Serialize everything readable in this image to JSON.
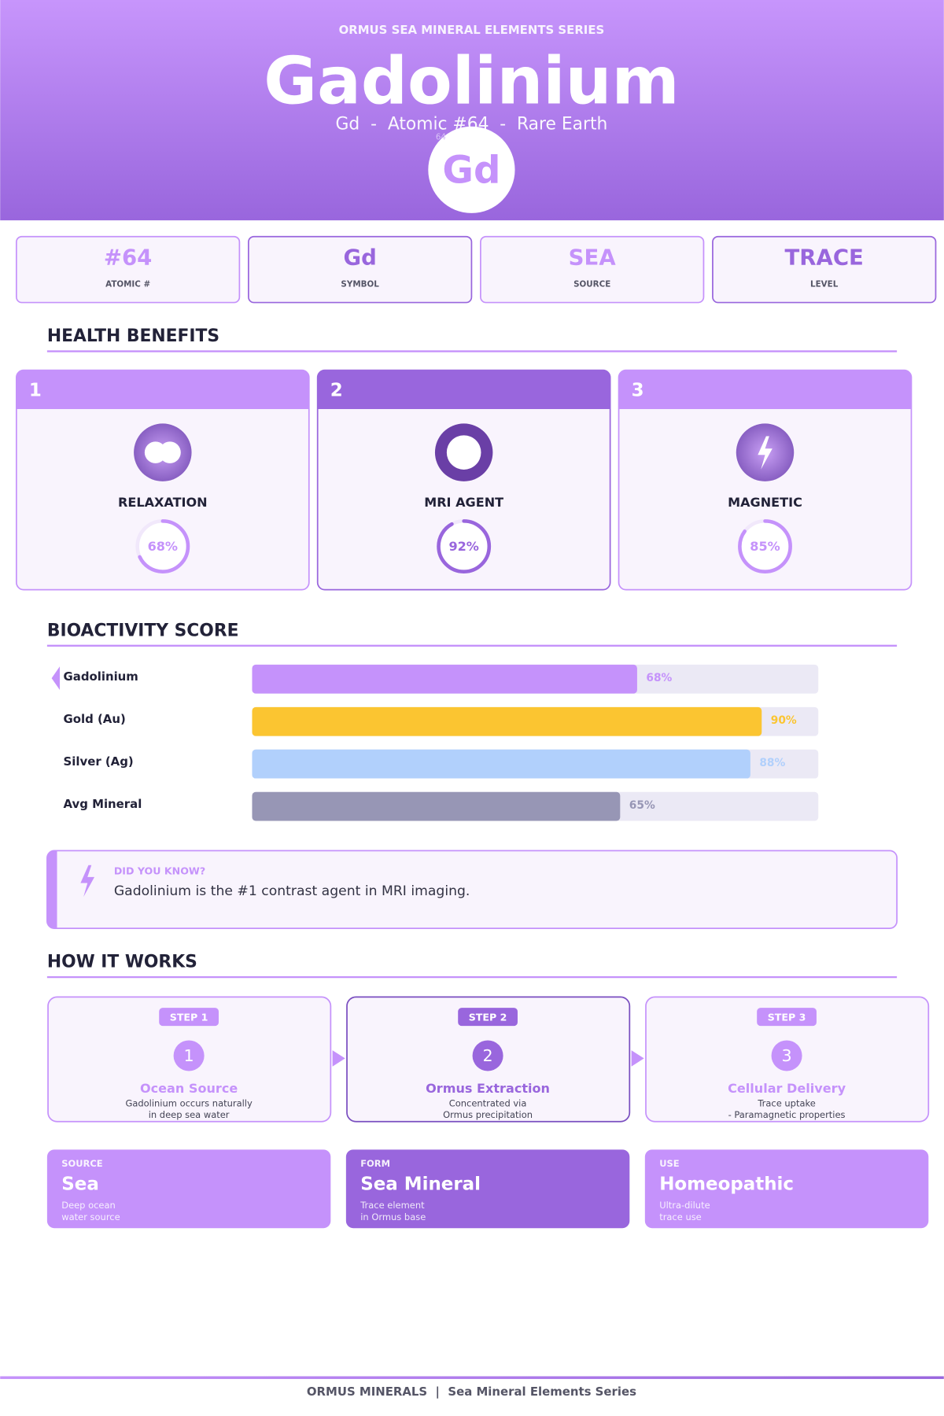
{
  "header": {
    "series": "ORMUS SEA MINERAL ELEMENTS SERIES",
    "title": "Gadolinium",
    "subtitle": "Gd  -  Atomic #64  -  Rare Earth",
    "badge_number": "64",
    "badge_symbol": "Gd"
  },
  "stats": [
    {
      "value": "#64",
      "label": "ATOMIC #"
    },
    {
      "value": "Gd",
      "label": "SYMBOL"
    },
    {
      "value": "SEA",
      "label": "SOURCE"
    },
    {
      "value": "TRACE",
      "label": "LEVEL"
    }
  ],
  "health": {
    "title": "HEALTH BENEFITS",
    "cards": [
      {
        "number": "1",
        "name": "RELAXATION",
        "score": 68,
        "score_label": "68%"
      },
      {
        "number": "2",
        "name": "MRI AGENT",
        "score": 92,
        "score_label": "92%"
      },
      {
        "number": "3",
        "name": "MAGNETIC",
        "score": 85,
        "score_label": "85%"
      }
    ]
  },
  "bioactivity": {
    "title": "BIOACTIVITY SCORE",
    "type": "bar",
    "categories": [
      "Gadolinium",
      "Gold (Au)",
      "Silver (Ag)",
      "Avg Mineral"
    ],
    "values": [
      68,
      90,
      88,
      65
    ],
    "value_labels": [
      "68%",
      "90%",
      "88%",
      "65%"
    ],
    "colors": [
      "#c592fb",
      "#fbc531",
      "#b1d0fc",
      "#9796b5"
    ],
    "xlim": [
      0,
      100
    ]
  },
  "fact": {
    "label": "DID YOU KNOW?",
    "text": "Gadolinium is the #1 contrast agent in MRI imaging."
  },
  "how": {
    "title": "HOW IT WORKS",
    "steps": [
      {
        "step": "STEP 1",
        "number": "1",
        "title": "Ocean Source",
        "lines": [
          "Gadolinium occurs naturally",
          "in deep sea water"
        ]
      },
      {
        "step": "STEP 2",
        "number": "2",
        "title": "Ormus Extraction",
        "lines": [
          "Concentrated via",
          "Ormus precipitation"
        ]
      },
      {
        "step": "STEP 3",
        "number": "3",
        "title": "Cellular Delivery",
        "lines": [
          "Trace uptake",
          "- Paramagnetic properties"
        ]
      }
    ]
  },
  "info": [
    {
      "label": "SOURCE",
      "value": "Sea",
      "lines": [
        "Deep ocean",
        "water source"
      ]
    },
    {
      "label": "FORM",
      "value": "Sea Mineral",
      "lines": [
        "Trace element",
        "in Ormus base"
      ]
    },
    {
      "label": "USE",
      "value": "Homeopathic",
      "lines": [
        "Ultra-dilute",
        "trace use"
      ]
    }
  ],
  "footer": {
    "text": "ORMUS MINERALS  |  Sea Mineral Elements Series"
  }
}
